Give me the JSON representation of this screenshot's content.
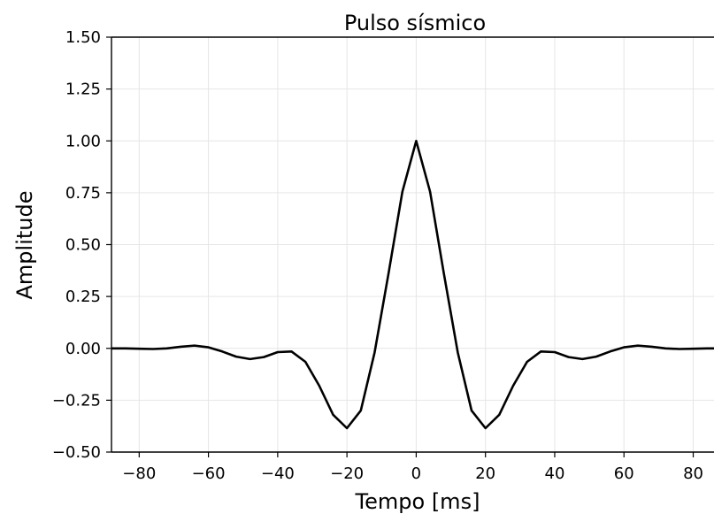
{
  "chart_data": {
    "type": "line",
    "title": "Pulso sísmico",
    "xlabel": "Tempo [ms]",
    "ylabel": "Amplitude",
    "xlim": [
      -88,
      86
    ],
    "ylim": [
      -0.5,
      1.5
    ],
    "grid": true,
    "x_ticks": [
      -80,
      -60,
      -40,
      -20,
      0,
      20,
      40,
      60,
      80
    ],
    "x_tick_labels": [
      "−80",
      "−60",
      "−40",
      "−20",
      "0",
      "20",
      "40",
      "60",
      "80"
    ],
    "y_ticks": [
      -0.5,
      -0.25,
      0,
      0.25,
      0.5,
      0.75,
      1.0,
      1.25,
      1.5
    ],
    "y_tick_labels": [
      "−0.50",
      "−0.25",
      "0.00",
      "0.25",
      "0.50",
      "0.75",
      "1.00",
      "1.25",
      "1.50"
    ],
    "series": [
      {
        "color": "#000000",
        "x": [
          -88,
          -84,
          -80,
          -76,
          -72,
          -68,
          -64,
          -60,
          -56,
          -52,
          -48,
          -44,
          -40,
          -36,
          -32,
          -28,
          -24,
          -20,
          -16,
          -12,
          -8,
          -4,
          0,
          4,
          8,
          12,
          16,
          20,
          24,
          28,
          32,
          36,
          40,
          44,
          48,
          52,
          56,
          60,
          64,
          68,
          72,
          76,
          80,
          84,
          86
        ],
        "y": [
          0.0,
          0.0,
          -0.002,
          -0.003,
          0.0,
          0.008,
          0.013,
          0.005,
          -0.015,
          -0.04,
          -0.052,
          -0.042,
          -0.018,
          -0.015,
          -0.065,
          -0.18,
          -0.32,
          -0.385,
          -0.3,
          -0.02,
          0.36,
          0.755,
          1.0,
          0.755,
          0.36,
          -0.02,
          -0.3,
          -0.385,
          -0.32,
          -0.18,
          -0.065,
          -0.015,
          -0.018,
          -0.042,
          -0.052,
          -0.04,
          -0.015,
          0.005,
          0.013,
          0.008,
          0.0,
          -0.003,
          -0.002,
          0.0,
          0.0
        ]
      }
    ]
  }
}
